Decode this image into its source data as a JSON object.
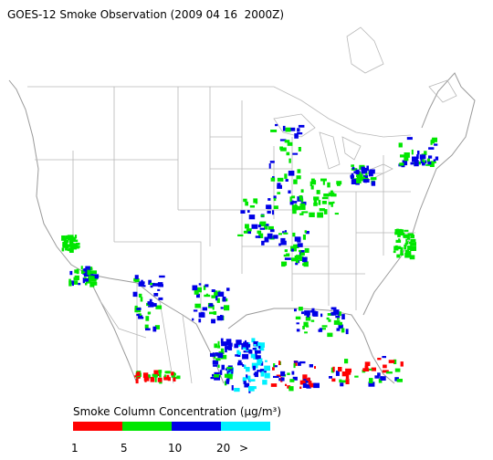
{
  "title": "GOES-12 Smoke Observation (2009 04 16  2000Z)",
  "legend": {
    "title": "Smoke Column Concentration (μg/m³)",
    "colors": [
      "#ff0000",
      "#00e600",
      "#0000e6",
      "#00f0ff"
    ],
    "labels": [
      "1",
      "5",
      "10",
      "20",
      ">"
    ]
  }
}
